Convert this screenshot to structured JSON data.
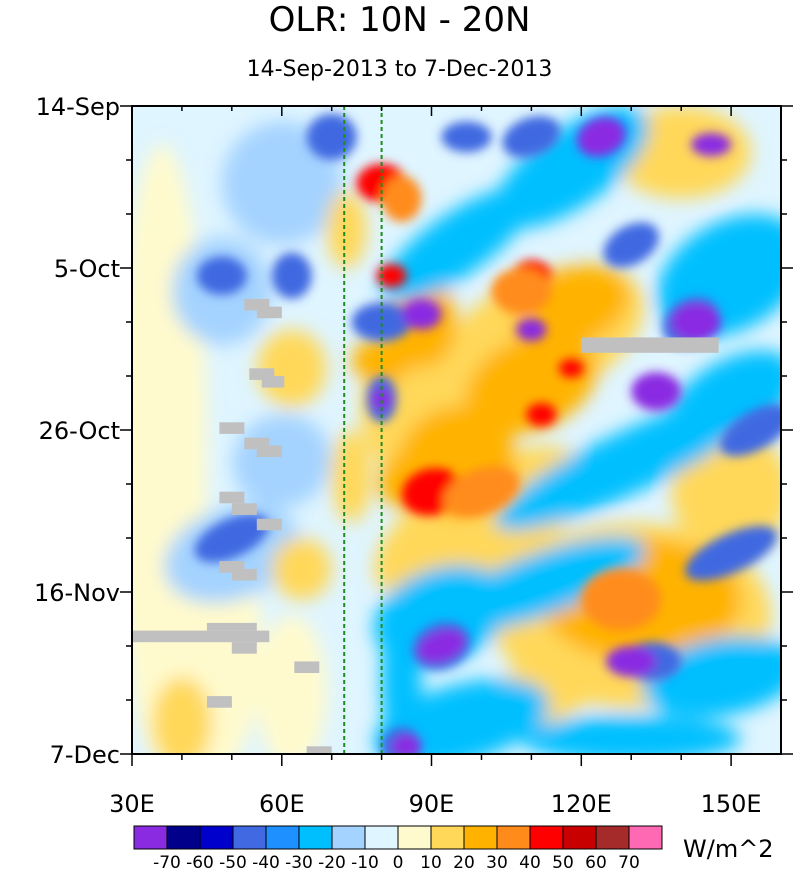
{
  "chart_data": {
    "type": "heatmap",
    "title": "OLR: 10N - 20N",
    "subtitle": "14-Sep-2013 to 7-Dec-2013",
    "x_axis": {
      "range": [
        30,
        160
      ],
      "ticks": [
        30,
        60,
        90,
        120,
        150
      ],
      "tick_labels": [
        "30E",
        "60E",
        "90E",
        "120E",
        "150E"
      ],
      "minor_ticks": [
        40,
        50,
        70,
        80,
        100,
        110,
        130,
        140
      ]
    },
    "y_axis": {
      "range_days": [
        0,
        84
      ],
      "ticks_days": [
        0,
        21,
        42,
        63,
        84
      ],
      "tick_labels": [
        "14-Sep",
        "5-Oct",
        "26-Oct",
        "16-Nov",
        "7-Dec"
      ],
      "minor_ticks_days": [
        7,
        14,
        28,
        35,
        49,
        56,
        70,
        77
      ]
    },
    "reference_lines_lon": [
      72.5,
      80
    ],
    "colorbar": {
      "units": "W/m^2",
      "levels": [
        "-70",
        "-60",
        "-50",
        "-40",
        "-30",
        "-20",
        "-10",
        "0",
        "10",
        "20",
        "30",
        "40",
        "50",
        "60",
        "70"
      ],
      "colors": [
        "#8a2be2",
        "#00008b",
        "#0000cd",
        "#4169e1",
        "#1e90ff",
        "#00bfff",
        "#a4d3ff",
        "#dff5ff",
        "#fffacd",
        "#ffd85a",
        "#ffb300",
        "#ff8c1a",
        "#ff0000",
        "#c80000",
        "#a52a2a",
        "#ff69b4"
      ]
    },
    "missing_color": "#c0c0c0"
  }
}
